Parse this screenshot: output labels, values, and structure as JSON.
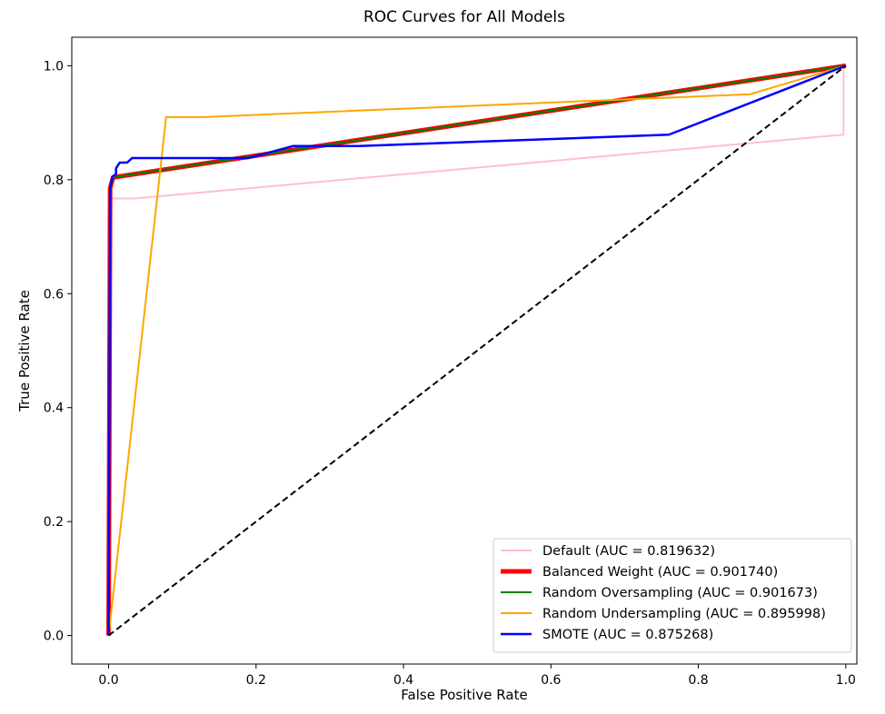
{
  "chart_data": {
    "type": "line",
    "title": "ROC Curves for All Models",
    "xlabel": "False Positive Rate",
    "ylabel": "True Positive Rate",
    "xlim": [
      -0.05,
      1.015
    ],
    "ylim": [
      -0.05,
      1.05
    ],
    "xticks": [
      0.0,
      0.2,
      0.4,
      0.6,
      0.8,
      1.0
    ],
    "yticks": [
      0.0,
      0.2,
      0.4,
      0.6,
      0.8,
      1.0
    ],
    "tick_labels": [
      "0.0",
      "0.2",
      "0.4",
      "0.6",
      "0.8",
      "1.0"
    ],
    "grid": false,
    "legend_position": "lower-right",
    "series": [
      {
        "name": "Default (AUC = 0.819632)",
        "color": "#ffc0cb",
        "width": 2,
        "dashed": false,
        "points": [
          [
            0,
            0
          ],
          [
            0.002,
            0.767
          ],
          [
            0.035,
            0.767
          ],
          [
            0.997,
            0.879
          ],
          [
            0.997,
            1.0
          ],
          [
            1.0,
            1.0
          ]
        ]
      },
      {
        "name": "Balanced Weight (AUC = 0.901740)",
        "color": "#ff0000",
        "width": 5,
        "dashed": false,
        "points": [
          [
            0,
            0
          ],
          [
            0.002,
            0.785
          ],
          [
            0.006,
            0.804
          ],
          [
            1.0,
            1.0
          ]
        ]
      },
      {
        "name": "Random Oversampling (AUC = 0.901673)",
        "color": "#008000",
        "width": 2,
        "dashed": false,
        "points": [
          [
            0,
            0
          ],
          [
            0.002,
            0.785
          ],
          [
            0.006,
            0.804
          ],
          [
            1.0,
            1.0
          ]
        ]
      },
      {
        "name": "Random Undersampling (AUC = 0.895998)",
        "color": "#ffa500",
        "width": 2,
        "dashed": false,
        "points": [
          [
            0,
            0
          ],
          [
            0.078,
            0.91
          ],
          [
            0.13,
            0.91
          ],
          [
            0.87,
            0.95
          ],
          [
            1.0,
            1.0
          ]
        ]
      },
      {
        "name": "SMOTE (AUC = 0.875268)",
        "color": "#0000ff",
        "width": 2.5,
        "dashed": false,
        "points": [
          [
            0,
            0
          ],
          [
            0.002,
            0.785
          ],
          [
            0.005,
            0.805
          ],
          [
            0.01,
            0.81
          ],
          [
            0.01,
            0.82
          ],
          [
            0.015,
            0.83
          ],
          [
            0.025,
            0.83
          ],
          [
            0.032,
            0.838
          ],
          [
            0.19,
            0.838
          ],
          [
            0.25,
            0.859
          ],
          [
            0.34,
            0.859
          ],
          [
            0.76,
            0.879
          ],
          [
            1.0,
            1.0
          ]
        ]
      },
      {
        "name": "",
        "color": "#000000",
        "width": 2,
        "dashed": true,
        "points": [
          [
            0,
            0
          ],
          [
            1,
            1
          ]
        ]
      }
    ]
  }
}
